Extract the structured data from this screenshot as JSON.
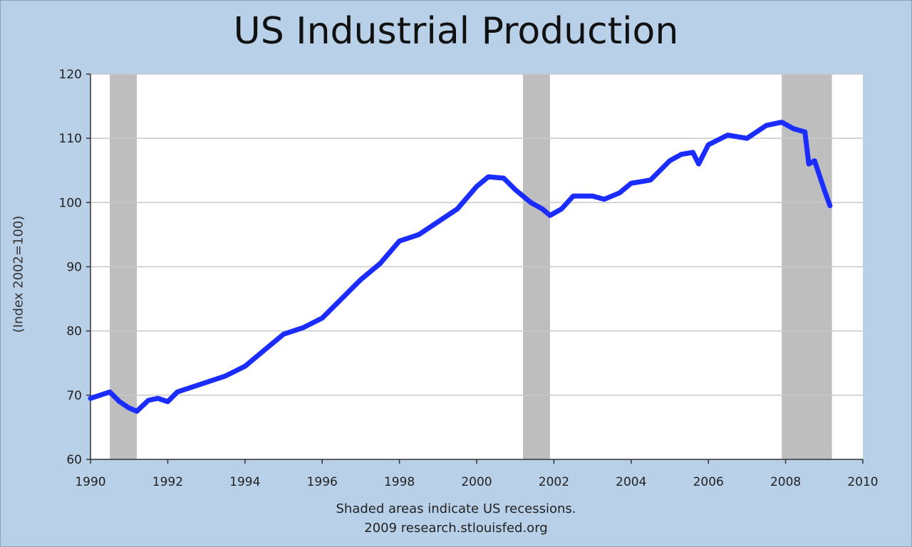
{
  "colors": {
    "background": "#b8d0e8",
    "plot_background": "#ffffff",
    "series_line": "#1a2cff",
    "recession_shade": "#bebebe",
    "gridline": "#c8c8c8"
  },
  "chart_data": {
    "type": "line",
    "title": "US Industrial Production",
    "xlabel": "",
    "ylabel": "(Index 2002=100)",
    "xlim": [
      1990,
      2010
    ],
    "ylim": [
      60,
      120
    ],
    "x_ticks": [
      1990,
      1992,
      1994,
      1996,
      1998,
      2000,
      2002,
      2004,
      2006,
      2008,
      2010
    ],
    "y_ticks": [
      60,
      70,
      80,
      90,
      100,
      110,
      120
    ],
    "grid": true,
    "recessions": [
      {
        "start": 1990.5,
        "end": 1991.2
      },
      {
        "start": 2001.2,
        "end": 2001.9
      },
      {
        "start": 2007.9,
        "end": 2009.2
      }
    ],
    "series": [
      {
        "name": "Industrial Production Index",
        "x": [
          1990.0,
          1990.25,
          1990.5,
          1990.75,
          1991.0,
          1991.2,
          1991.5,
          1991.75,
          1992.0,
          1992.25,
          1992.5,
          1993.0,
          1993.5,
          1994.0,
          1994.5,
          1995.0,
          1995.5,
          1996.0,
          1996.5,
          1997.0,
          1997.5,
          1998.0,
          1998.5,
          1999.0,
          1999.5,
          2000.0,
          2000.3,
          2000.7,
          2001.0,
          2001.4,
          2001.7,
          2001.9,
          2002.2,
          2002.5,
          2003.0,
          2003.3,
          2003.7,
          2004.0,
          2004.5,
          2005.0,
          2005.3,
          2005.6,
          2005.75,
          2006.0,
          2006.5,
          2007.0,
          2007.5,
          2007.9,
          2008.2,
          2008.5,
          2008.6,
          2008.75,
          2009.0,
          2009.15
        ],
        "values": [
          69.5,
          70.0,
          70.5,
          69.0,
          68.0,
          67.5,
          69.2,
          69.5,
          69.0,
          70.5,
          71.0,
          72.0,
          73.0,
          74.5,
          77.0,
          79.5,
          80.5,
          82.0,
          85.0,
          88.0,
          90.5,
          94.0,
          95.0,
          97.0,
          99.0,
          102.5,
          104.0,
          103.8,
          102.0,
          100.0,
          99.0,
          98.0,
          99.0,
          101.0,
          101.0,
          100.5,
          101.5,
          103.0,
          103.5,
          106.5,
          107.5,
          107.8,
          106.0,
          109.0,
          110.5,
          110.0,
          112.0,
          112.5,
          111.5,
          111.0,
          106.0,
          106.5,
          102.0,
          99.5
        ]
      }
    ]
  },
  "captions": {
    "line1": "Shaded areas indicate US recessions.",
    "line2": "2009 research.stlouisfed.org"
  }
}
